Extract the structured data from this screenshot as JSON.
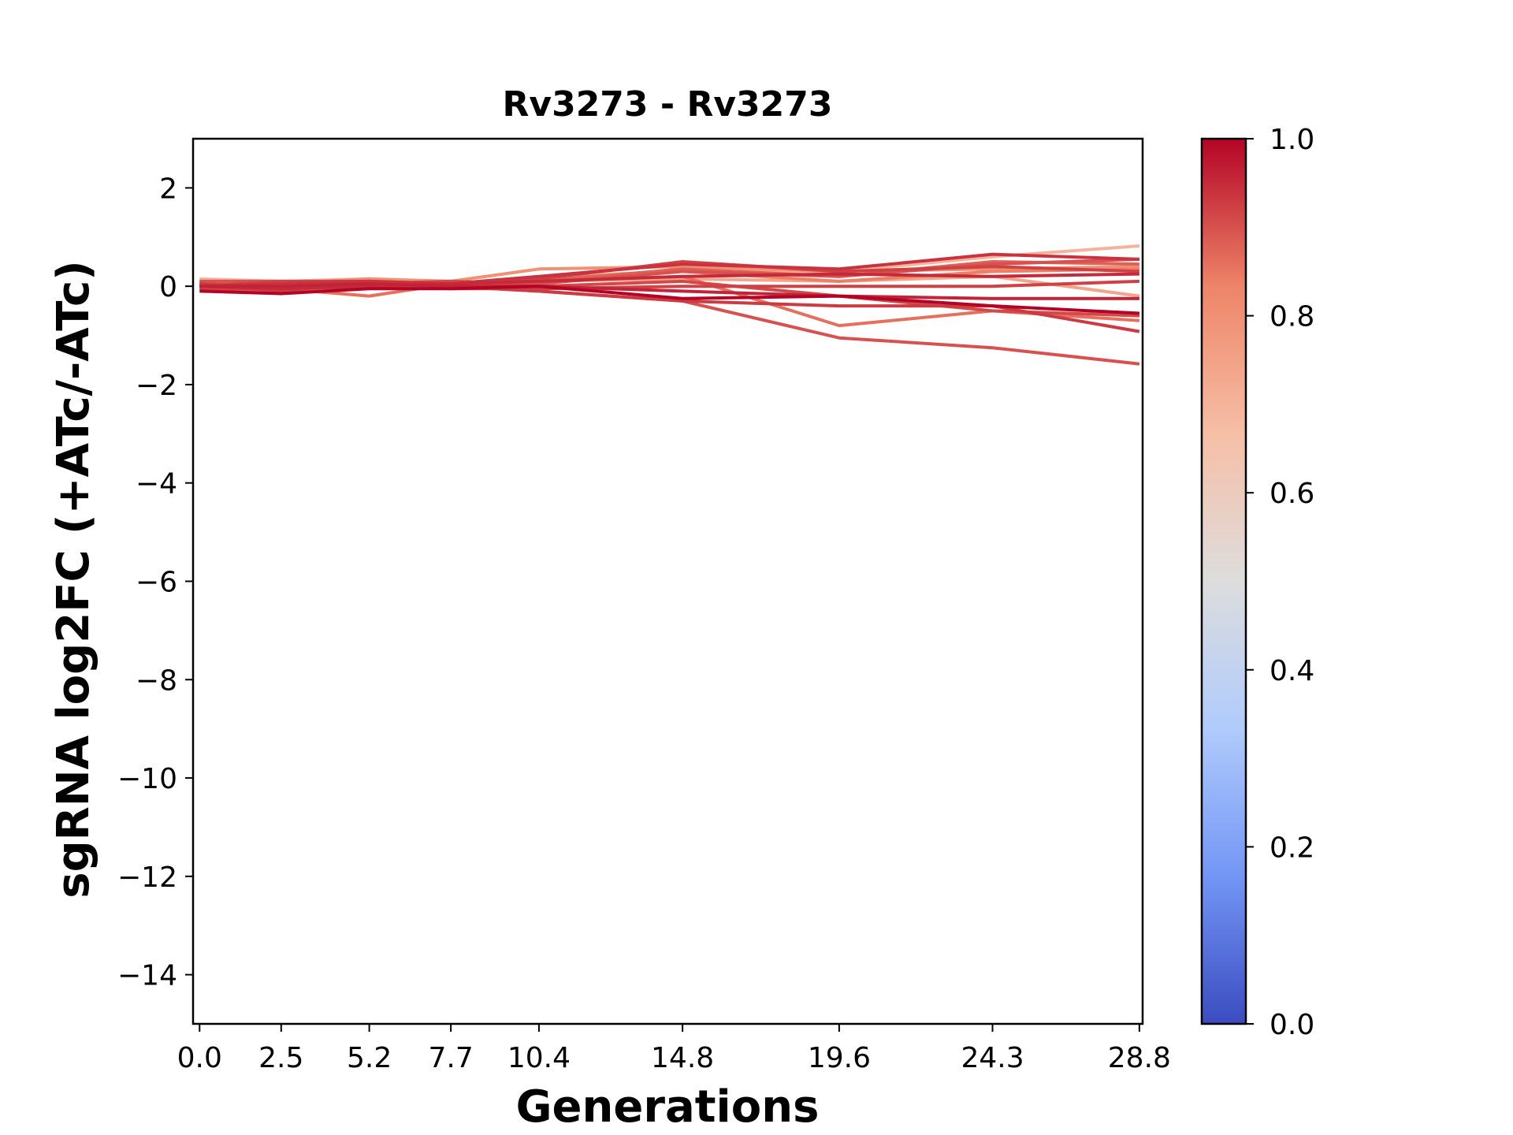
{
  "chart_data": {
    "type": "line",
    "title": "Rv3273 - Rv3273",
    "xlabel": "Generations",
    "ylabel": "sgRNA log2FC (+ATc/-ATc)",
    "x": [
      0.0,
      2.5,
      5.2,
      7.7,
      10.4,
      14.8,
      19.6,
      24.3,
      28.8
    ],
    "x_tick_labels": [
      "0.0",
      "2.5",
      "5.2",
      "7.7",
      "10.4",
      "14.8",
      "19.6",
      "24.3",
      "28.8"
    ],
    "xlim": [
      -0.2,
      28.9
    ],
    "ylim": [
      -15,
      3
    ],
    "y_ticks": [
      2,
      0,
      -2,
      -4,
      -6,
      -8,
      -10,
      -12,
      -14
    ],
    "y_tick_labels": [
      "2",
      "0",
      "−2",
      "−4",
      "−6",
      "−8",
      "−10",
      "−12",
      "−14"
    ],
    "grid": false,
    "colormap": "coolwarm",
    "colorbar": {
      "range": [
        0.0,
        1.0
      ],
      "ticks": [
        0.0,
        0.2,
        0.4,
        0.6,
        0.8,
        1.0
      ],
      "tick_labels": [
        "0.0",
        "0.2",
        "0.4",
        "0.6",
        "0.8",
        "1.0"
      ],
      "colors": [
        "#3b4cc0",
        "#7396f5",
        "#b0cbfc",
        "#dddddd",
        "#f6bfa6",
        "#ee8468",
        "#b40426"
      ]
    },
    "series": [
      {
        "color_value": 0.7,
        "values": [
          0.15,
          0.1,
          0.15,
          0.05,
          0.2,
          0.3,
          0.3,
          0.6,
          0.82
        ]
      },
      {
        "color_value": 0.74,
        "values": [
          0.1,
          0.05,
          0.1,
          0.05,
          0.1,
          0.15,
          0.1,
          0.2,
          -0.2
        ]
      },
      {
        "color_value": 0.8,
        "values": [
          0.0,
          0.05,
          0.15,
          0.1,
          0.35,
          0.4,
          0.3,
          0.35,
          0.4
        ]
      },
      {
        "color_value": 0.84,
        "values": [
          0.05,
          0.0,
          0.1,
          0.05,
          0.15,
          0.3,
          0.1,
          0.3,
          0.35
        ]
      },
      {
        "color_value": 0.86,
        "values": [
          0.05,
          -0.05,
          -0.2,
          0.05,
          0.1,
          0.2,
          -0.8,
          -0.5,
          -0.7
        ]
      },
      {
        "color_value": 0.88,
        "values": [
          0.0,
          -0.1,
          0.0,
          0.0,
          0.1,
          0.35,
          0.2,
          0.5,
          0.45
        ]
      },
      {
        "color_value": 0.9,
        "values": [
          0.1,
          0.1,
          0.05,
          0.1,
          0.05,
          0.3,
          0.2,
          0.45,
          0.55
        ]
      },
      {
        "color_value": 0.9,
        "values": [
          -0.05,
          -0.1,
          0.05,
          0.0,
          -0.1,
          -0.3,
          -1.05,
          -1.25,
          -1.58
        ]
      },
      {
        "color_value": 0.91,
        "values": [
          0.05,
          0.0,
          0.05,
          0.1,
          0.0,
          0.1,
          -0.2,
          -0.5,
          -0.6
        ]
      },
      {
        "color_value": 0.92,
        "values": [
          -0.05,
          -0.05,
          0.0,
          -0.05,
          -0.05,
          0.0,
          0.0,
          0.0,
          0.1
        ]
      },
      {
        "color_value": 0.92,
        "values": [
          0.0,
          0.1,
          0.1,
          0.05,
          0.15,
          0.5,
          0.3,
          0.4,
          0.3
        ]
      },
      {
        "color_value": 0.93,
        "values": [
          0.05,
          -0.1,
          0.1,
          0.0,
          -0.1,
          -0.3,
          -0.4,
          -0.4,
          -0.92
        ]
      },
      {
        "color_value": 0.94,
        "values": [
          0.0,
          0.05,
          0.1,
          0.05,
          0.2,
          0.45,
          0.35,
          0.65,
          0.55
        ]
      },
      {
        "color_value": 0.95,
        "values": [
          0.0,
          -0.05,
          0.0,
          0.05,
          0.1,
          0.2,
          0.25,
          0.2,
          0.25
        ]
      },
      {
        "color_value": 0.96,
        "values": [
          0.0,
          0.0,
          0.05,
          0.0,
          0.0,
          -0.1,
          -0.2,
          -0.25,
          -0.25
        ]
      },
      {
        "color_value": 1.0,
        "values": [
          -0.1,
          -0.15,
          -0.05,
          -0.05,
          0.0,
          -0.25,
          -0.2,
          -0.4,
          -0.55
        ]
      }
    ]
  }
}
